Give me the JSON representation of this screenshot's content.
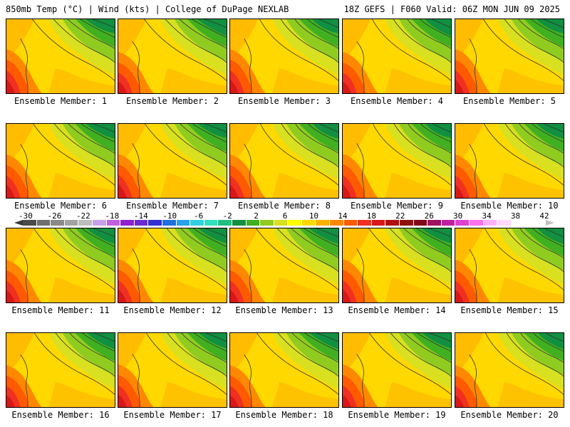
{
  "header": {
    "title_left": "850mb Temp (°C) | Wind (kts) | College of DuPage NEXLAB",
    "title_right": "18Z GEFS | F060 Valid: 06Z MON JUN 09 2025"
  },
  "members": [
    {
      "label": "Ensemble Member: 1"
    },
    {
      "label": "Ensemble Member: 2"
    },
    {
      "label": "Ensemble Member: 3"
    },
    {
      "label": "Ensemble Member: 4"
    },
    {
      "label": "Ensemble Member: 5"
    },
    {
      "label": "Ensemble Member: 6"
    },
    {
      "label": "Ensemble Member: 7"
    },
    {
      "label": "Ensemble Member: 8"
    },
    {
      "label": "Ensemble Member: 9"
    },
    {
      "label": "Ensemble Member: 10"
    },
    {
      "label": "Ensemble Member: 11"
    },
    {
      "label": "Ensemble Member: 12"
    },
    {
      "label": "Ensemble Member: 13"
    },
    {
      "label": "Ensemble Member: 14"
    },
    {
      "label": "Ensemble Member: 15"
    },
    {
      "label": "Ensemble Member: 16"
    },
    {
      "label": "Ensemble Member: 17"
    },
    {
      "label": "Ensemble Member: 18"
    },
    {
      "label": "Ensemble Member: 19"
    },
    {
      "label": "Ensemble Member: 20"
    }
  ],
  "colorbar": {
    "tick_labels": [
      "-30",
      "-26",
      "-22",
      "-18",
      "-14",
      "-10",
      "-6",
      "-2",
      "2",
      "6",
      "10",
      "14",
      "18",
      "22",
      "26",
      "30",
      "34",
      "38",
      "42"
    ],
    "colors": [
      "#4a4a4a",
      "#6e6e6e",
      "#8a8a8a",
      "#a3a3a3",
      "#bdbdbd",
      "#c8a0e8",
      "#c060e0",
      "#9020d0",
      "#6a2ad6",
      "#3030d0",
      "#1f6fe0",
      "#2aa0e8",
      "#30d0e0",
      "#30e0c0",
      "#20c080",
      "#109040",
      "#40b020",
      "#90cc20",
      "#d8e020",
      "#ffff00",
      "#ffd800",
      "#ffb000",
      "#ff8800",
      "#ff5a00",
      "#f03020",
      "#d81818",
      "#b01010",
      "#901010",
      "#800818",
      "#a01060",
      "#c020a0",
      "#e040d0",
      "#ff70f0",
      "#ffb0ff",
      "#ffd8ff"
    ]
  }
}
